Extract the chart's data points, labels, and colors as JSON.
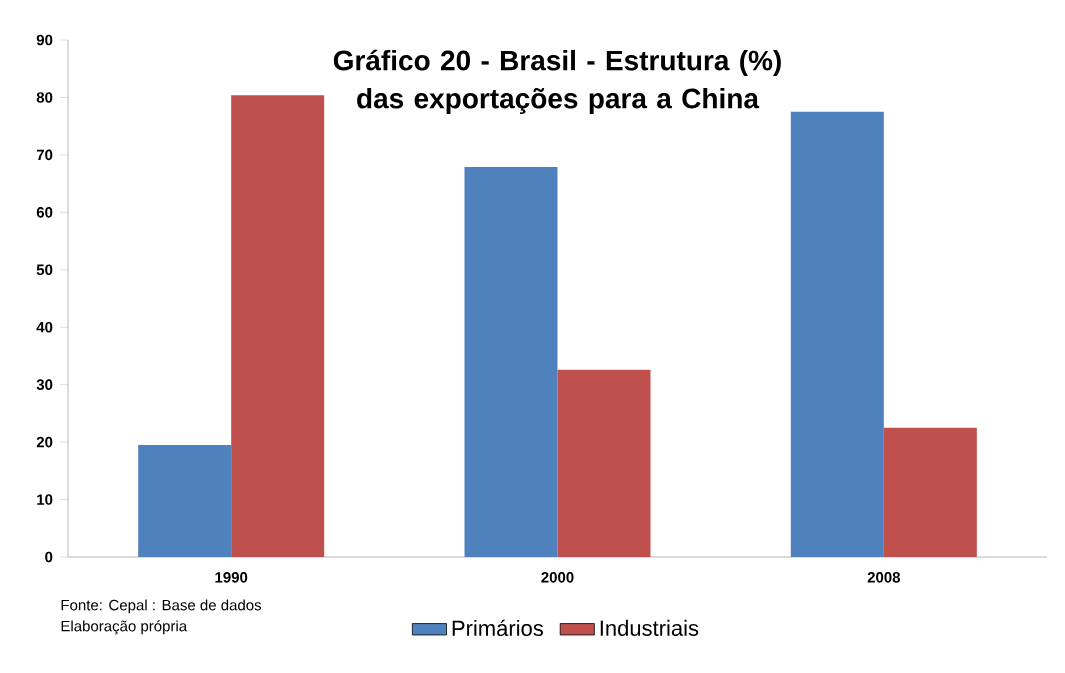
{
  "chart_data": {
    "type": "bar",
    "title": "Gráfico 20 - Brasil - Estrutura (%) das exportações para a China",
    "categories": [
      "1990",
      "2000",
      "2008"
    ],
    "series": [
      {
        "name": "Primários",
        "color": "#4f81bd",
        "values": [
          19.5,
          67.9,
          77.5
        ]
      },
      {
        "name": "Industriais",
        "color": "#c0504d",
        "values": [
          80.4,
          32.6,
          22.5
        ]
      }
    ],
    "ylim": [
      0,
      90
    ],
    "yticks": [
      0,
      10,
      20,
      30,
      40,
      50,
      60,
      70,
      80,
      90
    ],
    "grid": false,
    "legend": "bottom",
    "annotations": [
      "Fonte: Cepal : Base de dados",
      "Elaboração própria"
    ]
  }
}
